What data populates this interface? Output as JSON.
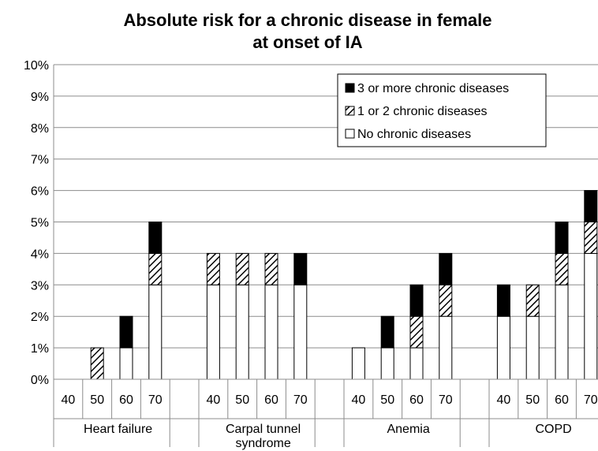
{
  "chart_data": {
    "type": "bar",
    "title_lines": [
      "Absolute risk for a chronic disease in female",
      "at onset of IA"
    ],
    "stacked": true,
    "ylim": [
      0,
      10
    ],
    "y_ticks": [
      "0%",
      "1%",
      "2%",
      "3%",
      "4%",
      "5%",
      "6%",
      "7%",
      "8%",
      "9%",
      "10%"
    ],
    "grid": true,
    "legend_position": "top-right",
    "groups": [
      {
        "name": "Heart failure",
        "categories": [
          "40",
          "50",
          "60",
          "70"
        ],
        "series_values": {
          "none": [
            0,
            0,
            1,
            3
          ],
          "one_or_two": [
            0,
            1,
            0,
            1
          ],
          "three_plus": [
            0,
            0,
            1,
            1
          ]
        }
      },
      {
        "name": "Carpal tunnel syndrome",
        "name_lines": [
          "Carpal tunnel",
          "syndrome"
        ],
        "categories": [
          "40",
          "50",
          "60",
          "70"
        ],
        "series_values": {
          "none": [
            3,
            3,
            3,
            3
          ],
          "one_or_two": [
            1,
            1,
            1,
            0
          ],
          "three_plus": [
            0,
            0,
            0,
            1
          ]
        }
      },
      {
        "name": "Anemia",
        "categories": [
          "40",
          "50",
          "60",
          "70"
        ],
        "series_values": {
          "none": [
            1,
            1,
            1,
            2
          ],
          "one_or_two": [
            0,
            0,
            1,
            1
          ],
          "three_plus": [
            0,
            1,
            1,
            1
          ]
        }
      },
      {
        "name": "COPD",
        "categories": [
          "40",
          "50",
          "60",
          "70"
        ],
        "series_values": {
          "none": [
            2,
            2,
            3,
            4
          ],
          "one_or_two": [
            0,
            1,
            1,
            1
          ],
          "three_plus": [
            1,
            0,
            1,
            1
          ]
        }
      }
    ],
    "series": [
      {
        "key": "three_plus",
        "name": "3 or more chronic diseases",
        "fill": "#000000"
      },
      {
        "key": "one_or_two",
        "name": "1 or 2 chronic diseases",
        "fill": "hatch"
      },
      {
        "key": "none",
        "name": "No chronic diseases",
        "fill": "#ffffff"
      }
    ],
    "stack_order": [
      "none",
      "one_or_two",
      "three_plus"
    ]
  }
}
